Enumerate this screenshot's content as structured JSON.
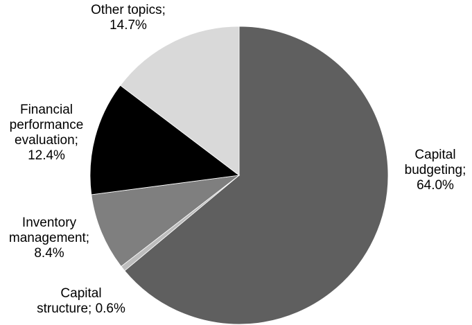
{
  "chart_data": {
    "type": "pie",
    "title": "",
    "start_angle_deg": 0,
    "direction": "clockwise",
    "slices": [
      {
        "name": "Capital budgeting",
        "value": 64.0,
        "label_lines": [
          "Capital",
          "budgeting;",
          "64.0%"
        ],
        "color": "#5F5F5F"
      },
      {
        "name": "Capital structure",
        "value": 0.6,
        "label_lines": [
          "Capital",
          "structure; 0.6%"
        ],
        "color": "#BDBDBD"
      },
      {
        "name": "Inventory management",
        "value": 8.4,
        "label_lines": [
          "Inventory",
          "management;",
          "8.4%"
        ],
        "color": "#7F7F7F"
      },
      {
        "name": "Financial performance evaluation",
        "value": 12.4,
        "label_lines": [
          "Financial",
          "performance",
          "evaluation;",
          "12.4%"
        ],
        "color": "#000000"
      },
      {
        "name": "Other topics",
        "value": 14.7,
        "label_lines": [
          "Other topics;",
          "14.7%"
        ],
        "color": "#D9D9D9"
      }
    ]
  }
}
